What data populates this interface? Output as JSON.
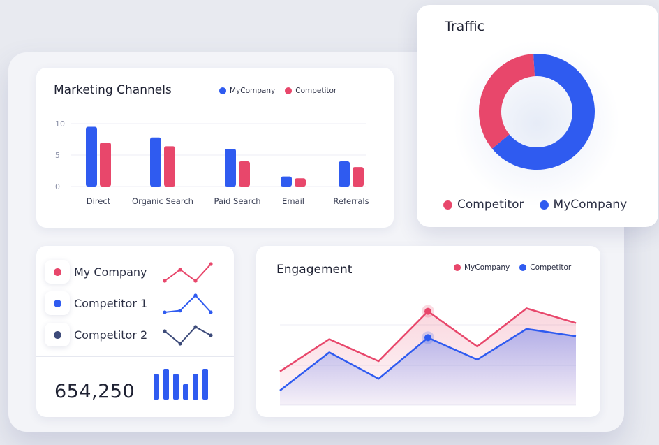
{
  "marketing": {
    "title": "Marketing Channels",
    "legend": [
      "MyCompany",
      "Competitor"
    ],
    "chart_data": {
      "type": "bar",
      "categories": [
        "Direct",
        "Organic Search",
        "Paid Search",
        "Email",
        "Referrals"
      ],
      "series": [
        {
          "name": "MyCompany",
          "values": [
            9.5,
            7.8,
            6.0,
            1.6,
            4.0
          ]
        },
        {
          "name": "Competitor",
          "values": [
            7.0,
            6.4,
            4.0,
            1.3,
            3.1
          ]
        }
      ],
      "ylim": [
        0,
        10
      ],
      "yticks": [
        "0",
        "5",
        "10"
      ],
      "grid": true
    }
  },
  "traffic": {
    "title": "Traffic",
    "legend": [
      "Competitor",
      "MyCompany"
    ],
    "chart_data": {
      "type": "pie",
      "donut": true,
      "slices": [
        {
          "name": "MyCompany",
          "value": 65
        },
        {
          "name": "Competitor",
          "value": 35
        }
      ]
    }
  },
  "companies": {
    "items": [
      {
        "label": "My Company",
        "spark": [
          1,
          3,
          1,
          4
        ]
      },
      {
        "label": "Competitor 1",
        "spark": [
          1,
          1.2,
          3,
          1
        ]
      },
      {
        "label": "Competitor 2",
        "spark": [
          3,
          1.5,
          3.5,
          2.5
        ]
      }
    ],
    "total": "654,250",
    "mini_bars": [
      5,
      6,
      5,
      3,
      5,
      6
    ]
  },
  "engagement": {
    "title": "Engagement",
    "legend": [
      "MyCompany",
      "Competitor"
    ],
    "chart_data": {
      "type": "area",
      "series": [
        {
          "name": "MyCompany",
          "values": [
            2.3,
            4.5,
            3.0,
            6.4,
            4.0,
            6.6,
            5.6
          ]
        },
        {
          "name": "Competitor",
          "values": [
            1.0,
            3.6,
            1.8,
            4.6,
            3.1,
            5.2,
            4.7
          ]
        }
      ],
      "ylim": [
        0,
        8
      ],
      "grid": true
    }
  },
  "colors": {
    "mycompany": "#2f5bf0",
    "competitor": "#e8476b",
    "competitor2": "#3d4b7a"
  }
}
